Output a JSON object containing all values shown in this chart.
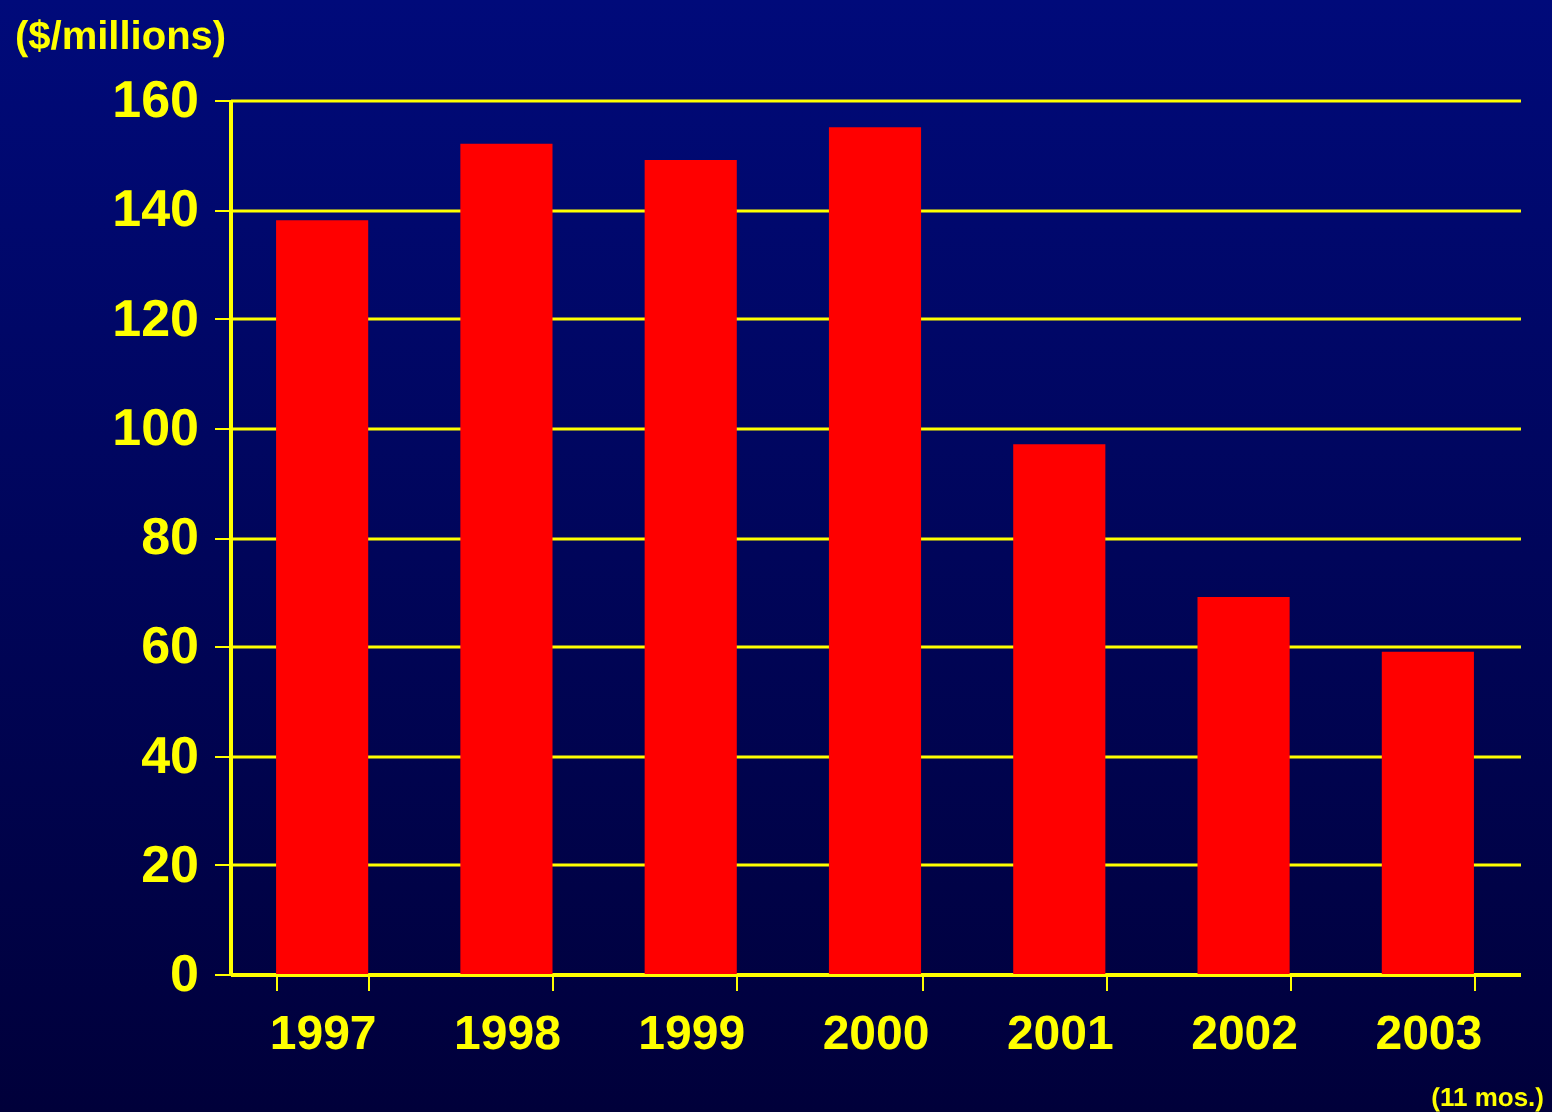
{
  "chart_data": {
    "type": "bar",
    "ylabel": "($/millions)",
    "categories": [
      "1997",
      "1998",
      "1999",
      "2000",
      "2001",
      "2002",
      "2003"
    ],
    "values": [
      138,
      152,
      149,
      155,
      97,
      69,
      59
    ],
    "color": "#ff0000",
    "ylim": [
      0,
      160
    ],
    "yticks": [
      0,
      20,
      40,
      60,
      80,
      100,
      120,
      140,
      160
    ],
    "grid": "y",
    "annotations": [
      "(11 mos.)"
    ]
  }
}
